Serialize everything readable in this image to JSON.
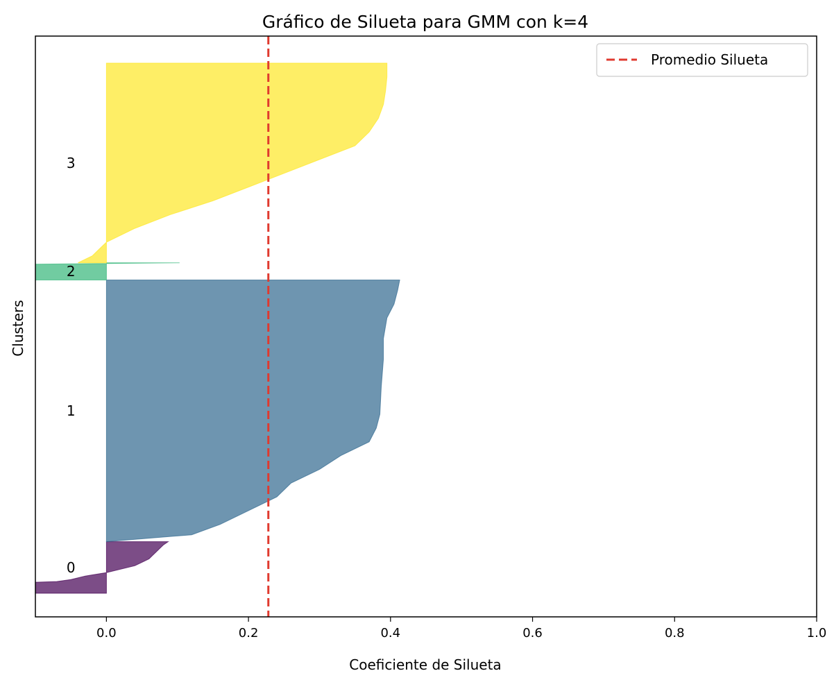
{
  "chart_data": {
    "type": "area",
    "title": "Gráfico de Silueta para GMM con k=4",
    "xlabel": "Coeficiente de Silueta",
    "ylabel": "Clusters",
    "xlim": [
      -0.1,
      1.0
    ],
    "xticks": [
      "0.0",
      "0.2",
      "0.4",
      "0.6",
      "0.8",
      "1.0"
    ],
    "xtick_values": [
      0.0,
      0.2,
      0.4,
      0.6,
      0.8,
      1.0
    ],
    "grid": false,
    "legend": {
      "placement": "top-right",
      "entries": [
        "Promedio Silueta"
      ]
    },
    "average_silhouette": 0.228,
    "average_line_color": "#e03a2f",
    "clusters": [
      {
        "label": "0",
        "color": "#440154",
        "y_range": [
          0,
          75
        ],
        "profile": [
          [
            0,
            -0.1
          ],
          [
            16,
            -0.1
          ],
          [
            17,
            -0.07
          ],
          [
            20,
            -0.05
          ],
          [
            25,
            -0.03
          ],
          [
            30,
            -0.0
          ],
          [
            35,
            0.02
          ],
          [
            40,
            0.04
          ],
          [
            45,
            0.05
          ],
          [
            50,
            0.06
          ],
          [
            55,
            0.065
          ],
          [
            60,
            0.07
          ],
          [
            65,
            0.075
          ],
          [
            70,
            0.08
          ],
          [
            75,
            0.087
          ]
        ]
      },
      {
        "label": "1",
        "color": "#31688e",
        "y_range": [
          75,
          455
        ],
        "profile": [
          [
            75,
            0.0
          ],
          [
            85,
            0.12
          ],
          [
            100,
            0.16
          ],
          [
            120,
            0.2
          ],
          [
            140,
            0.24
          ],
          [
            160,
            0.26
          ],
          [
            180,
            0.3
          ],
          [
            200,
            0.33
          ],
          [
            220,
            0.37
          ],
          [
            240,
            0.38
          ],
          [
            260,
            0.385
          ],
          [
            300,
            0.387
          ],
          [
            340,
            0.39
          ],
          [
            370,
            0.39
          ],
          [
            400,
            0.395
          ],
          [
            420,
            0.405
          ],
          [
            440,
            0.41
          ],
          [
            455,
            0.413
          ]
        ]
      },
      {
        "label": "2",
        "color": "#35b779",
        "y_range": [
          455,
          480
        ],
        "profile": [
          [
            455,
            -0.1
          ],
          [
            478,
            -0.1
          ],
          [
            479,
            0.0
          ],
          [
            480,
            0.103
          ]
        ]
      },
      {
        "label": "3",
        "color": "#fde725",
        "y_range": [
          480,
          770
        ],
        "profile": [
          [
            480,
            -0.04
          ],
          [
            490,
            -0.02
          ],
          [
            500,
            -0.01
          ],
          [
            510,
            0.0
          ],
          [
            530,
            0.04
          ],
          [
            550,
            0.09
          ],
          [
            570,
            0.15
          ],
          [
            590,
            0.2
          ],
          [
            610,
            0.25
          ],
          [
            630,
            0.3
          ],
          [
            650,
            0.35
          ],
          [
            670,
            0.37
          ],
          [
            690,
            0.383
          ],
          [
            710,
            0.39
          ],
          [
            730,
            0.393
          ],
          [
            750,
            0.395
          ],
          [
            770,
            0.395
          ]
        ]
      }
    ]
  }
}
